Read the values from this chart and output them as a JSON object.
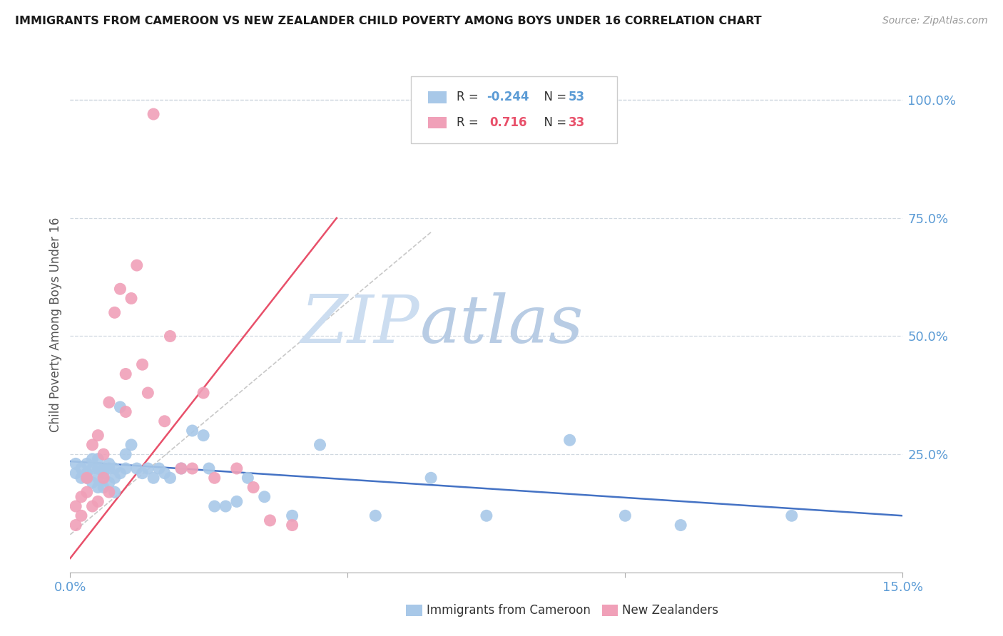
{
  "title": "IMMIGRANTS FROM CAMEROON VS NEW ZEALANDER CHILD POVERTY AMONG BOYS UNDER 16 CORRELATION CHART",
  "source": "Source: ZipAtlas.com",
  "ylabel": "Child Poverty Among Boys Under 16",
  "xmin": 0.0,
  "xmax": 0.15,
  "ymin": 0.0,
  "ymax": 1.05,
  "yticks": [
    0.25,
    0.5,
    0.75,
    1.0
  ],
  "ytick_labels": [
    "25.0%",
    "50.0%",
    "75.0%",
    "100.0%"
  ],
  "xticks": [
    0.0,
    0.05,
    0.1,
    0.15
  ],
  "xtick_labels": [
    "0.0%",
    "",
    "",
    "15.0%"
  ],
  "color_blue": "#a8c8e8",
  "color_pink": "#f0a0b8",
  "color_blue_line": "#4472c4",
  "color_pink_line": "#e8506a",
  "color_blue_text": "#5b9bd5",
  "color_pink_text": "#e8506a",
  "color_grid": "#d0d8e0",
  "watermark_color": "#dde8f5",
  "blue_scatter_x": [
    0.001,
    0.001,
    0.002,
    0.002,
    0.003,
    0.003,
    0.003,
    0.004,
    0.004,
    0.004,
    0.005,
    0.005,
    0.005,
    0.005,
    0.006,
    0.006,
    0.006,
    0.007,
    0.007,
    0.007,
    0.008,
    0.008,
    0.008,
    0.009,
    0.009,
    0.01,
    0.01,
    0.011,
    0.012,
    0.013,
    0.014,
    0.015,
    0.016,
    0.017,
    0.018,
    0.02,
    0.022,
    0.024,
    0.025,
    0.026,
    0.028,
    0.03,
    0.032,
    0.035,
    0.04,
    0.045,
    0.055,
    0.065,
    0.075,
    0.09,
    0.1,
    0.11,
    0.13
  ],
  "blue_scatter_y": [
    0.21,
    0.23,
    0.22,
    0.2,
    0.21,
    0.23,
    0.2,
    0.19,
    0.22,
    0.24,
    0.18,
    0.22,
    0.24,
    0.2,
    0.21,
    0.18,
    0.22,
    0.23,
    0.19,
    0.22,
    0.2,
    0.22,
    0.17,
    0.35,
    0.21,
    0.22,
    0.25,
    0.27,
    0.22,
    0.21,
    0.22,
    0.2,
    0.22,
    0.21,
    0.2,
    0.22,
    0.3,
    0.29,
    0.22,
    0.14,
    0.14,
    0.15,
    0.2,
    0.16,
    0.12,
    0.27,
    0.12,
    0.2,
    0.12,
    0.28,
    0.12,
    0.1,
    0.12
  ],
  "pink_scatter_x": [
    0.001,
    0.001,
    0.002,
    0.002,
    0.003,
    0.003,
    0.004,
    0.004,
    0.005,
    0.005,
    0.006,
    0.006,
    0.007,
    0.007,
    0.008,
    0.009,
    0.01,
    0.01,
    0.011,
    0.012,
    0.013,
    0.014,
    0.015,
    0.017,
    0.018,
    0.02,
    0.022,
    0.024,
    0.026,
    0.03,
    0.033,
    0.036,
    0.04
  ],
  "pink_scatter_y": [
    0.1,
    0.14,
    0.12,
    0.16,
    0.17,
    0.2,
    0.14,
    0.27,
    0.15,
    0.29,
    0.2,
    0.25,
    0.17,
    0.36,
    0.55,
    0.6,
    0.42,
    0.34,
    0.58,
    0.65,
    0.44,
    0.38,
    0.97,
    0.32,
    0.5,
    0.22,
    0.22,
    0.38,
    0.2,
    0.22,
    0.18,
    0.11,
    0.1
  ],
  "blue_line_x": [
    0.0,
    0.15
  ],
  "blue_line_y": [
    0.235,
    0.12
  ],
  "pink_line_x": [
    0.0,
    0.048
  ],
  "pink_line_y": [
    0.03,
    0.75
  ],
  "diag_line_x": [
    0.0,
    0.065
  ],
  "diag_line_y": [
    0.08,
    0.72
  ]
}
